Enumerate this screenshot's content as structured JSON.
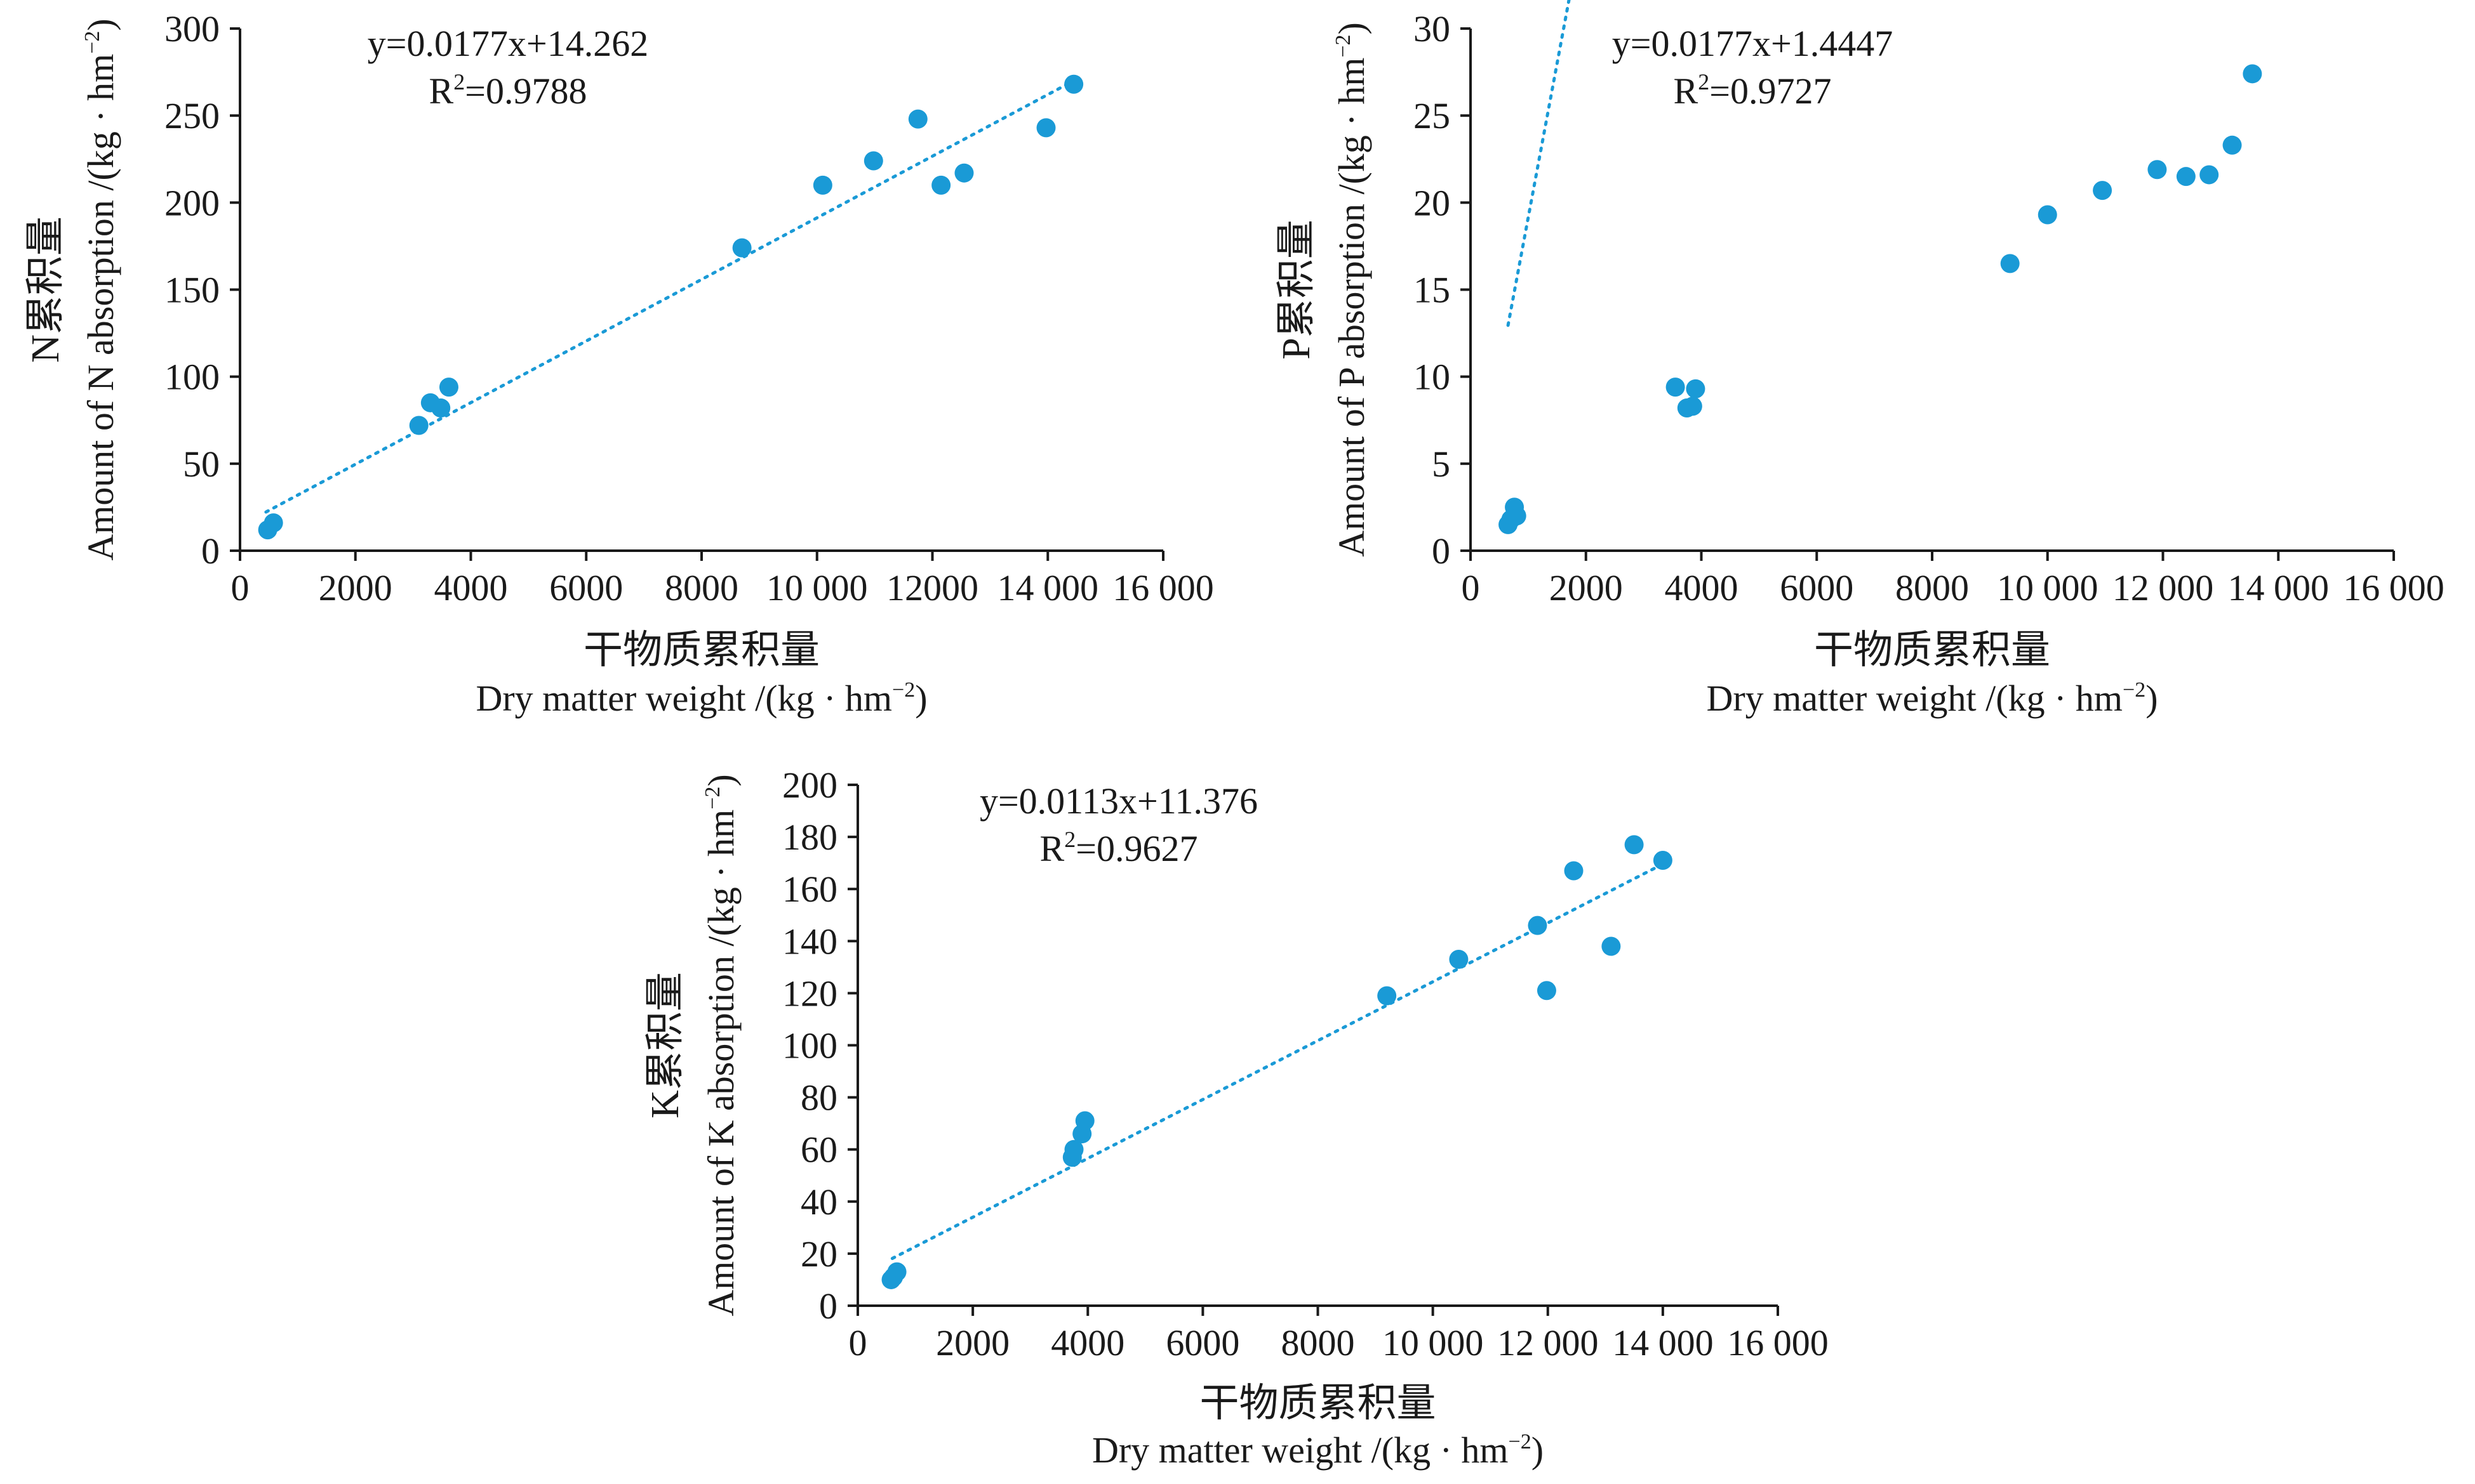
{
  "point_color": "#1a9ad6",
  "chart_data": [
    {
      "type": "scatter",
      "xlabel_cn": "干物质累积量",
      "xlabel_en": "Dry matter weight /(kg · hm",
      "xlabel_en_sup": "−2",
      "xlabel_en_end": ")",
      "ylabel_cn": "N累积量",
      "ylabel_en": "Amount of N absorption /(kg · hm",
      "ylabel_en_sup": "−2",
      "ylabel_en_end": ")",
      "equation": "y=0.0177x+14.262",
      "r2_prefix": "R",
      "r2_sup": "2",
      "r2_value": "=0.9788",
      "xlim": [
        0,
        16000
      ],
      "ylim": [
        0,
        300
      ],
      "xticks": [
        0,
        2000,
        4000,
        6000,
        8000,
        10000,
        12000,
        14000,
        16000
      ],
      "xtick_labels": [
        "0",
        "2000",
        "4000",
        "6000",
        "8000",
        "10 000",
        "12000",
        "14 000",
        "16 000"
      ],
      "yticks": [
        0,
        50,
        100,
        150,
        200,
        250,
        300
      ],
      "ytick_labels": [
        "0",
        "50",
        "100",
        "150",
        "200",
        "250",
        "300"
      ],
      "trend": {
        "slope": 0.0177,
        "intercept": 14.262,
        "x_range": [
          450,
          14450
        ]
      },
      "x": [
        480,
        580,
        3100,
        3300,
        3480,
        3620,
        8700,
        10100,
        10980,
        11750,
        12150,
        12550,
        13970,
        14450
      ],
      "y": [
        12,
        16,
        72,
        85,
        82,
        94,
        174,
        210,
        224,
        248,
        210,
        217,
        243,
        268
      ]
    },
    {
      "type": "scatter",
      "xlabel_cn": "干物质累积量",
      "xlabel_en": "Dry matter weight /(kg · hm",
      "xlabel_en_sup": "−2",
      "xlabel_en_end": ")",
      "ylabel_cn": "P累积量",
      "ylabel_en": "Amount of P absorption /(kg · hm",
      "ylabel_en_sup": "−2",
      "ylabel_en_end": ")",
      "equation": "y=0.0177x+1.4447",
      "r2_prefix": "R",
      "r2_sup": "2",
      "r2_value": "=0.9727",
      "xlim": [
        0,
        16000
      ],
      "ylim": [
        0,
        30
      ],
      "xticks": [
        0,
        2000,
        4000,
        6000,
        8000,
        10000,
        12000,
        14000,
        16000
      ],
      "xtick_labels": [
        "0",
        "2000",
        "4000",
        "6000",
        "8000",
        "10 000",
        "12 000",
        "14 000",
        "16 000"
      ],
      "yticks": [
        0,
        5,
        10,
        15,
        20,
        25,
        30
      ],
      "ytick_labels": [
        "0",
        "5",
        "10",
        "15",
        "20",
        "25",
        "30"
      ],
      "trend": {
        "slope": 0.0177,
        "intercept": 1.4447,
        "x_range": [
          650,
          13500
        ]
      },
      "x": [
        650,
        700,
        800,
        760,
        3550,
        3750,
        3850,
        3900,
        9350,
        10000,
        10950,
        11900,
        12400,
        12800,
        13200,
        13550
      ],
      "y": [
        1.5,
        1.8,
        2.0,
        2.5,
        9.4,
        8.2,
        8.3,
        9.3,
        16.5,
        19.3,
        20.7,
        21.9,
        21.5,
        21.6,
        23.3,
        27.4
      ]
    },
    {
      "type": "scatter",
      "xlabel_cn": "干物质累积量",
      "xlabel_en": "Dry matter weight /(kg · hm",
      "xlabel_en_sup": "−2",
      "xlabel_en_end": ")",
      "ylabel_cn": "K累积量",
      "ylabel_en": "Amount of K absorption /(kg · hm",
      "ylabel_en_sup": "−2",
      "ylabel_en_end": ")",
      "equation": "y=0.0113x+11.376",
      "r2_prefix": "R",
      "r2_sup": "2",
      "r2_value": "=0.9627",
      "xlim": [
        0,
        16000
      ],
      "ylim": [
        0,
        200
      ],
      "xticks": [
        0,
        2000,
        4000,
        6000,
        8000,
        10000,
        12000,
        14000,
        16000
      ],
      "xtick_labels": [
        "0",
        "2000",
        "4000",
        "6000",
        "8000",
        "10 000",
        "12 000",
        "14 000",
        "16 000"
      ],
      "yticks": [
        0,
        20,
        40,
        60,
        80,
        100,
        120,
        140,
        160,
        180,
        200
      ],
      "ytick_labels": [
        "0",
        "20",
        "40",
        "60",
        "80",
        "100",
        "120",
        "140",
        "160",
        "180",
        "200"
      ],
      "trend": {
        "slope": 0.0113,
        "intercept": 11.376,
        "x_range": [
          600,
          14000
        ]
      },
      "x": [
        580,
        620,
        680,
        3730,
        3760,
        3900,
        3950,
        9200,
        10450,
        11820,
        11980,
        12450,
        13100,
        13500,
        14000
      ],
      "y": [
        10,
        11,
        13,
        57,
        60,
        66,
        71,
        119,
        133,
        146,
        121,
        167,
        138,
        177,
        171
      ]
    }
  ]
}
